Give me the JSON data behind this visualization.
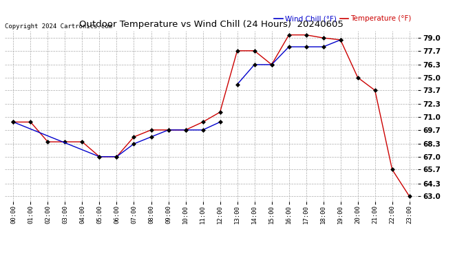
{
  "title": "Outdoor Temperature vs Wind Chill (24 Hours)  20240605",
  "copyright": "Copyright 2024 Cartronics.com",
  "legend_wind_chill": "Wind Chill (°F)",
  "legend_temperature": "Temperature (°F)",
  "x_labels": [
    "00:00",
    "01:00",
    "02:00",
    "03:00",
    "04:00",
    "05:00",
    "06:00",
    "07:00",
    "08:00",
    "09:00",
    "10:00",
    "11:00",
    "12:00",
    "13:00",
    "14:00",
    "15:00",
    "16:00",
    "17:00",
    "18:00",
    "19:00",
    "20:00",
    "21:00",
    "22:00",
    "23:00"
  ],
  "temperature": [
    70.5,
    70.5,
    68.5,
    68.5,
    68.5,
    67.0,
    67.0,
    69.0,
    69.7,
    69.7,
    69.7,
    70.5,
    71.5,
    77.7,
    77.7,
    76.3,
    79.3,
    79.3,
    79.0,
    78.8,
    75.0,
    73.7,
    65.7,
    63.0
  ],
  "wind_chill_segments": [
    [
      [
        0,
        70.5
      ],
      [
        5,
        67.0
      ],
      [
        6,
        67.0
      ],
      [
        7,
        68.3
      ],
      [
        8,
        69.0
      ],
      [
        9,
        69.7
      ],
      [
        10,
        69.7
      ],
      [
        11,
        69.7
      ],
      [
        12,
        70.5
      ]
    ],
    [
      [
        13,
        74.3
      ],
      [
        14,
        76.3
      ],
      [
        15,
        76.3
      ],
      [
        16,
        78.1
      ],
      [
        17,
        78.1
      ],
      [
        18,
        78.1
      ],
      [
        19,
        78.8
      ]
    ]
  ],
  "ylim_min": 62.5,
  "ylim_max": 79.7,
  "yticks": [
    63.0,
    64.3,
    65.7,
    67.0,
    68.3,
    69.7,
    71.0,
    72.3,
    73.7,
    75.0,
    76.3,
    77.7,
    79.0
  ],
  "temp_color": "#cc0000",
  "wind_color": "#0000cc",
  "bg_color": "#ffffff",
  "grid_color": "#aaaaaa",
  "title_color": "#000000",
  "copyright_color": "#000000",
  "marker_size": 3.0,
  "linewidth": 1.0
}
